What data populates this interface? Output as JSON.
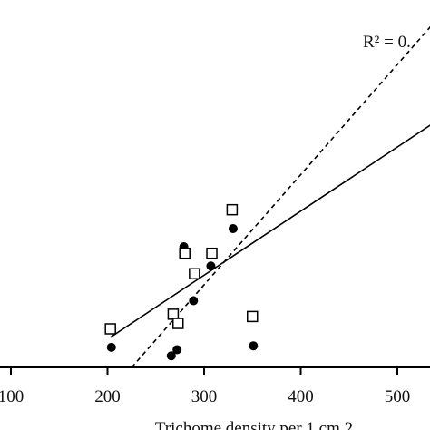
{
  "chart_data": {
    "type": "scatter",
    "xlabel": "Trichome density per 1 cm 2",
    "xticks": [
      100,
      200,
      300,
      400,
      500
    ],
    "xlim": [
      100,
      540
    ],
    "ylim": [
      0,
      100
    ],
    "annotation": "R² = 0.",
    "series": [
      {
        "marker": "filled-circle",
        "points": [
          {
            "x": 204,
            "y": 5.2
          },
          {
            "x": 266,
            "y": 3.0
          },
          {
            "x": 272,
            "y": 4.6
          },
          {
            "x": 289,
            "y": 17.3
          },
          {
            "x": 307,
            "y": 26.3
          },
          {
            "x": 330,
            "y": 36.0
          },
          {
            "x": 279,
            "y": 31.3
          },
          {
            "x": 351,
            "y": 5.6
          }
        ],
        "fit": {
          "style": "dashed",
          "x0": 225,
          "y0": 0,
          "x1": 540,
          "y1": 90
        }
      },
      {
        "marker": "open-square",
        "points": [
          {
            "x": 203,
            "y": 10.0
          },
          {
            "x": 268,
            "y": 13.8
          },
          {
            "x": 273,
            "y": 11.4
          },
          {
            "x": 280,
            "y": 29.6
          },
          {
            "x": 290,
            "y": 24.3
          },
          {
            "x": 308,
            "y": 29.6
          },
          {
            "x": 329,
            "y": 40.9
          },
          {
            "x": 350,
            "y": 13.2
          }
        ],
        "fit": {
          "style": "solid",
          "x0": 203,
          "y0": 7.8,
          "x1": 540,
          "y1": 63.8
        }
      }
    ]
  }
}
